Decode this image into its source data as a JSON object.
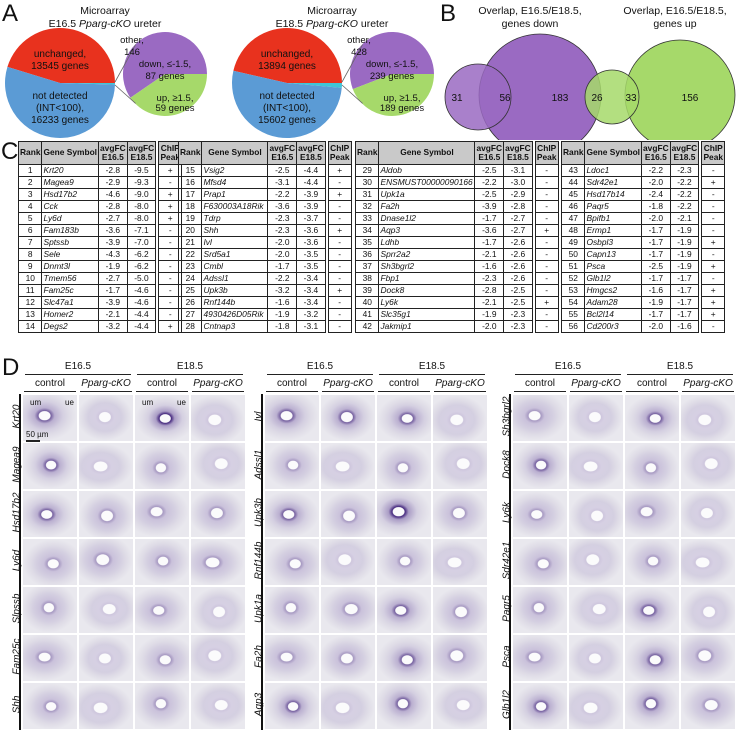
{
  "panel_labels": {
    "a": "A",
    "b": "B",
    "c": "C",
    "d": "D"
  },
  "panel_a": {
    "pies": [
      {
        "title_line1": "Microarray",
        "title_stage": "E16.5 ",
        "title_geno": "Pparg-cKO",
        "title_rest": " ureter",
        "unchanged": {
          "label1": "unchanged,",
          "label2": "13545 genes",
          "value": 13545
        },
        "not_detected": {
          "label1": "not detected",
          "label2": "(INT<100),",
          "label3": "16233 genes",
          "value": 16233
        },
        "other": {
          "label1": "other,",
          "label2": "146",
          "value": 146
        },
        "down": {
          "label1": "down, ≤-1.5,",
          "label2": "87 genes",
          "value": 87
        },
        "up": {
          "label1": "up, ≥1.5,",
          "label2": "59 genes",
          "value": 59
        }
      },
      {
        "title_line1": "Microarray",
        "title_stage": "E18.5 ",
        "title_geno": "Pparg-cKO",
        "title_rest": " ureter",
        "unchanged": {
          "label1": "unchanged,",
          "label2": "13894 genes",
          "value": 13894
        },
        "not_detected": {
          "label1": "not detected",
          "label2": "(INT<100),",
          "label3": "15602 genes",
          "value": 15602
        },
        "other": {
          "label1": "other,",
          "label2": "428",
          "value": 428
        },
        "down": {
          "label1": "down, ≤-1.5,",
          "label2": "239 genes",
          "value": 239
        },
        "up": {
          "label1": "up, ≥1.5,",
          "label2": "189 genes",
          "value": 189
        }
      }
    ],
    "colors": {
      "unchanged": "#e8321e",
      "not_detected": "#5b9bd5",
      "other": "#3fc5d8",
      "down": "#9a6ac2",
      "up": "#a6d96a"
    }
  },
  "panel_b": {
    "venns": [
      {
        "title1": "Overlap, E16.5/E18.5,",
        "title2": "genes down",
        "left_only": "31",
        "both": "56",
        "right_only": "183",
        "color": "#9a6ac2"
      },
      {
        "title1": "Overlap, E16.5/E18.5,",
        "title2": "genes up",
        "left_only": "26",
        "both": "33",
        "right_only": "156",
        "color": "#a6d96a"
      }
    ]
  },
  "panel_c": {
    "headers": {
      "rank": "Rank",
      "gene": "Gene Symbol",
      "fc1a": "avgFC",
      "fc1b": "E16.5",
      "fc2a": "avgFC",
      "fc2b": "E18.5",
      "chipa": "ChIP",
      "chipb": "Peak"
    },
    "rows": [
      [
        "1",
        "Krt20",
        "-2.8",
        "-9.5",
        "+"
      ],
      [
        "2",
        "Magea9",
        "-2.9",
        "-9.3",
        "-"
      ],
      [
        "3",
        "Hsd17b2",
        "-4.6",
        "-9.0",
        "+"
      ],
      [
        "4",
        "Cck",
        "-2.8",
        "-8.0",
        "+"
      ],
      [
        "5",
        "Ly6d",
        "-2.7",
        "-8.0",
        "+"
      ],
      [
        "6",
        "Fam183b",
        "-3.6",
        "-7.1",
        "-"
      ],
      [
        "7",
        "Sptssb",
        "-3.9",
        "-7.0",
        "-"
      ],
      [
        "8",
        "Sele",
        "-4.3",
        "-6.2",
        "-"
      ],
      [
        "9",
        "Dnmt3l",
        "-1.9",
        "-6.2",
        "-"
      ],
      [
        "10",
        "Tmem56",
        "-2.7",
        "-5.0",
        "-"
      ],
      [
        "11",
        "Fam25c",
        "-1.7",
        "-4.6",
        "-"
      ],
      [
        "12",
        "Slc47a1",
        "-3.9",
        "-4.6",
        "-"
      ],
      [
        "13",
        "Homer2",
        "-2.1",
        "-4.4",
        "-"
      ],
      [
        "14",
        "Degs2",
        "-3.2",
        "-4.4",
        "+"
      ],
      [
        "15",
        "Vsig2",
        "-2.5",
        "-4.4",
        "+"
      ],
      [
        "16",
        "Mfsd4",
        "-3.1",
        "-4.4",
        "-"
      ],
      [
        "17",
        "Prap1",
        "-2.2",
        "-3.9",
        "+"
      ],
      [
        "18",
        "F630003A18Rik",
        "-3.6",
        "-3.9",
        "-"
      ],
      [
        "19",
        "Tdrp",
        "-2.3",
        "-3.7",
        "-"
      ],
      [
        "20",
        "Shh",
        "-2.3",
        "-3.6",
        "+"
      ],
      [
        "21",
        "Ivl",
        "-2.0",
        "-3.6",
        "-"
      ],
      [
        "22",
        "Srd5a1",
        "-2.0",
        "-3.5",
        "-"
      ],
      [
        "23",
        "Cmbl",
        "-1.7",
        "-3.5",
        "-"
      ],
      [
        "24",
        "Adssl1",
        "-2.2",
        "-3.4",
        "-"
      ],
      [
        "25",
        "Upk3b",
        "-3.2",
        "-3.4",
        "+"
      ],
      [
        "26",
        "Rnf144b",
        "-1.6",
        "-3.4",
        "-"
      ],
      [
        "27",
        "4930426D05Rik",
        "-1.9",
        "-3.2",
        "-"
      ],
      [
        "28",
        "Cntnap3",
        "-1.8",
        "-3.1",
        "-"
      ],
      [
        "29",
        "Aldob",
        "-2.5",
        "-3.1",
        "-"
      ],
      [
        "30",
        "ENSMUST00000090166",
        "-2.2",
        "-3.0",
        "-"
      ],
      [
        "31",
        "Upk1a",
        "-2.5",
        "-2.9",
        "-"
      ],
      [
        "32",
        "Fa2h",
        "-3.9",
        "-2.8",
        "-"
      ],
      [
        "33",
        "Dnase1l2",
        "-1.7",
        "-2.7",
        "-"
      ],
      [
        "34",
        "Aqp3",
        "-3.6",
        "-2.7",
        "+"
      ],
      [
        "35",
        "Ldhb",
        "-1.7",
        "-2.6",
        "-"
      ],
      [
        "36",
        "Sprr2a2",
        "-2.1",
        "-2.6",
        "-"
      ],
      [
        "37",
        "Sh3bgrl2",
        "-1.6",
        "-2.6",
        "-"
      ],
      [
        "38",
        "Fbp1",
        "-2.3",
        "-2.6",
        "-"
      ],
      [
        "39",
        "Dock8",
        "-2.8",
        "-2.5",
        "-"
      ],
      [
        "40",
        "Ly6k",
        "-2.1",
        "-2.5",
        "+"
      ],
      [
        "41",
        "Slc35g1",
        "-1.9",
        "-2.3",
        "-"
      ],
      [
        "42",
        "Jakmip1",
        "-2.0",
        "-2.3",
        "-"
      ],
      [
        "43",
        "Ldoc1",
        "-2.2",
        "-2.3",
        "-"
      ],
      [
        "44",
        "Sdr42e1",
        "-2.0",
        "-2.2",
        "+"
      ],
      [
        "45",
        "Hsd17b14",
        "-2.4",
        "-2.2",
        "-"
      ],
      [
        "46",
        "Paqr5",
        "-1.8",
        "-2.2",
        "-"
      ],
      [
        "47",
        "Bpifb1",
        "-2.0",
        "-2.1",
        "-"
      ],
      [
        "48",
        "Ermp1",
        "-1.7",
        "-1.9",
        "-"
      ],
      [
        "49",
        "Osbpl3",
        "-1.7",
        "-1.9",
        "+"
      ],
      [
        "50",
        "Capn13",
        "-1.7",
        "-1.9",
        "-"
      ],
      [
        "51",
        "Psca",
        "-2.5",
        "-1.9",
        "+"
      ],
      [
        "52",
        "Glb1l2",
        "-1.7",
        "-1.7",
        "-"
      ],
      [
        "53",
        "Hmgcs2",
        "-1.6",
        "-1.7",
        "+"
      ],
      [
        "54",
        "Adam28",
        "-1.9",
        "-1.7",
        "+"
      ],
      [
        "55",
        "Bcl2l14",
        "-1.7",
        "-1.7",
        "+"
      ],
      [
        "56",
        "Cd200r3",
        "-2.0",
        "-1.6",
        "-"
      ]
    ]
  },
  "panel_d": {
    "stages": [
      "E16.5",
      "E18.5"
    ],
    "conditions": [
      "control",
      "Pparg-cKO"
    ],
    "annotations": {
      "um": "um",
      "ue": "ue",
      "scale": "50 µm"
    },
    "groups": [
      {
        "genes": [
          "Krt20",
          "Magea9",
          "Hsd17b2",
          "Ly6d",
          "Slpssb",
          "Fam25c",
          "Shh"
        ]
      },
      {
        "genes": [
          "Ivl",
          "Adssl1",
          "Upk3b",
          "Rnf144b",
          "Upk1a",
          "Fa2h",
          "Aqp3"
        ]
      },
      {
        "genes": [
          "Sh3bgrl2",
          "Dock8",
          "Ly6k",
          "Sdr42e1",
          "Paqr5",
          "Psca",
          "Glb1l2"
        ]
      }
    ]
  }
}
